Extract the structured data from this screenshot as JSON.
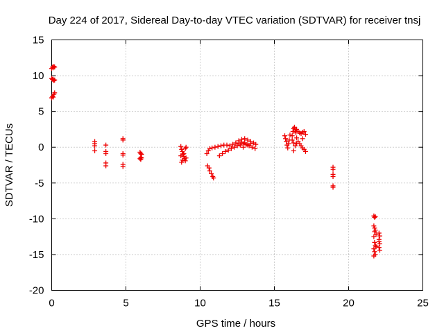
{
  "chart_data": {
    "type": "scatter",
    "title": "Day 224 of 2017, Sidereal Day-to-day VTEC variation (SDTVAR) for receiver tnsj",
    "xlabel": "GPS time / hours",
    "ylabel": "SDTVAR / TECUs",
    "xlim": [
      0,
      25
    ],
    "ylim": [
      -20,
      15
    ],
    "xticks": [
      0,
      5,
      10,
      15,
      20,
      25
    ],
    "yticks": [
      15,
      10,
      5,
      0,
      -5,
      -10,
      -15,
      -20
    ],
    "grid": true,
    "marker": "+",
    "color": "#ee0000",
    "series": [
      {
        "name": "SDTVAR",
        "points": [
          [
            0.0,
            11.0
          ],
          [
            0.05,
            11.2
          ],
          [
            0.1,
            11.1
          ],
          [
            0.15,
            11.3
          ],
          [
            0.2,
            11.2
          ],
          [
            0.0,
            9.6
          ],
          [
            0.05,
            9.5
          ],
          [
            0.1,
            9.5
          ],
          [
            0.15,
            9.3
          ],
          [
            0.2,
            9.4
          ],
          [
            0.0,
            6.9
          ],
          [
            0.05,
            7.1
          ],
          [
            0.1,
            7.0
          ],
          [
            0.15,
            7.4
          ],
          [
            0.2,
            7.6
          ],
          [
            2.9,
            0.8
          ],
          [
            2.9,
            0.5
          ],
          [
            2.9,
            0.2
          ],
          [
            2.9,
            -0.5
          ],
          [
            3.65,
            0.3
          ],
          [
            3.65,
            -0.6
          ],
          [
            3.65,
            -0.9
          ],
          [
            3.65,
            -2.2
          ],
          [
            3.65,
            -2.6
          ],
          [
            4.8,
            1.2
          ],
          [
            4.8,
            1.0
          ],
          [
            4.8,
            -0.9
          ],
          [
            4.8,
            -1.1
          ],
          [
            4.8,
            -2.4
          ],
          [
            4.8,
            -2.7
          ],
          [
            5.95,
            -0.7
          ],
          [
            6.0,
            -0.9
          ],
          [
            6.05,
            -1.0
          ],
          [
            6.0,
            -1.4
          ],
          [
            5.95,
            -1.6
          ],
          [
            6.05,
            -1.5
          ],
          [
            6.0,
            -1.7
          ],
          [
            8.7,
            0.1
          ],
          [
            8.75,
            -0.3
          ],
          [
            8.8,
            -0.6
          ],
          [
            8.85,
            -1.0
          ],
          [
            8.9,
            -1.3
          ],
          [
            8.95,
            -1.6
          ],
          [
            9.0,
            -1.9
          ],
          [
            9.05,
            -1.5
          ],
          [
            8.75,
            -2.1
          ],
          [
            8.8,
            -1.8
          ],
          [
            8.9,
            -0.9
          ],
          [
            9.0,
            -0.2
          ],
          [
            9.05,
            0.0
          ],
          [
            8.7,
            -1.2
          ],
          [
            10.45,
            -0.9
          ],
          [
            10.55,
            -0.5
          ],
          [
            10.65,
            -0.2
          ],
          [
            10.8,
            -0.1
          ],
          [
            11.0,
            0.0
          ],
          [
            11.2,
            0.1
          ],
          [
            11.4,
            0.2
          ],
          [
            11.6,
            0.3
          ],
          [
            11.8,
            0.3
          ],
          [
            12.0,
            0.2
          ],
          [
            12.2,
            0.4
          ],
          [
            12.4,
            0.6
          ],
          [
            12.6,
            0.9
          ],
          [
            12.8,
            1.1
          ],
          [
            13.0,
            1.2
          ],
          [
            13.2,
            1.0
          ],
          [
            13.4,
            0.8
          ],
          [
            13.6,
            0.6
          ],
          [
            13.75,
            0.4
          ],
          [
            11.3,
            -1.2
          ],
          [
            11.5,
            -0.9
          ],
          [
            11.7,
            -0.6
          ],
          [
            11.9,
            -0.4
          ],
          [
            12.1,
            -0.2
          ],
          [
            12.3,
            0.0
          ],
          [
            12.5,
            0.2
          ],
          [
            12.7,
            0.3
          ],
          [
            12.9,
            0.5
          ],
          [
            13.1,
            0.4
          ],
          [
            13.3,
            0.2
          ],
          [
            13.5,
            0.0
          ],
          [
            13.7,
            -0.2
          ],
          [
            12.6,
            0.5
          ],
          [
            12.8,
            0.7
          ],
          [
            13.0,
            0.6
          ],
          [
            13.2,
            0.3
          ],
          [
            12.9,
            0.0
          ],
          [
            13.4,
            0.5
          ],
          [
            10.5,
            -2.6
          ],
          [
            10.6,
            -2.9
          ],
          [
            10.65,
            -3.3
          ],
          [
            10.75,
            -3.7
          ],
          [
            10.85,
            -4.1
          ],
          [
            10.9,
            -4.3
          ],
          [
            15.7,
            1.6
          ],
          [
            15.75,
            1.2
          ],
          [
            15.8,
            0.8
          ],
          [
            15.85,
            0.3
          ],
          [
            15.9,
            -0.1
          ],
          [
            15.95,
            0.5
          ],
          [
            16.0,
            1.0
          ],
          [
            16.05,
            1.7
          ],
          [
            16.2,
            1.6
          ],
          [
            16.25,
            2.2
          ],
          [
            16.3,
            2.6
          ],
          [
            16.35,
            2.8
          ],
          [
            16.4,
            2.4
          ],
          [
            16.45,
            2.0
          ],
          [
            16.5,
            2.5
          ],
          [
            16.6,
            2.2
          ],
          [
            16.7,
            2.0
          ],
          [
            16.8,
            1.9
          ],
          [
            16.9,
            2.1
          ],
          [
            17.0,
            2.2
          ],
          [
            17.1,
            1.8
          ],
          [
            16.2,
            1.0
          ],
          [
            16.3,
            0.6
          ],
          [
            16.4,
            0.2
          ],
          [
            16.5,
            0.5
          ],
          [
            16.6,
            0.8
          ],
          [
            16.7,
            0.5
          ],
          [
            16.8,
            0.2
          ],
          [
            16.9,
            -0.1
          ],
          [
            17.0,
            -0.3
          ],
          [
            17.1,
            -0.6
          ],
          [
            16.3,
            -0.5
          ],
          [
            16.5,
            1.3
          ],
          [
            16.9,
            1.2
          ],
          [
            18.95,
            -2.8
          ],
          [
            18.95,
            -3.1
          ],
          [
            18.95,
            -3.8
          ],
          [
            18.95,
            -4.1
          ],
          [
            18.95,
            -5.4
          ],
          [
            18.95,
            -5.6
          ],
          [
            21.7,
            -9.6
          ],
          [
            21.75,
            -9.8
          ],
          [
            21.8,
            -9.7
          ],
          [
            21.7,
            -11.0
          ],
          [
            21.75,
            -11.3
          ],
          [
            21.8,
            -11.6
          ],
          [
            21.7,
            -12.5
          ],
          [
            21.75,
            -13.3
          ],
          [
            21.8,
            -13.7
          ],
          [
            21.7,
            -14.2
          ],
          [
            21.75,
            -14.6
          ],
          [
            21.8,
            -15.0
          ],
          [
            21.7,
            -15.2
          ],
          [
            21.85,
            -12.2
          ],
          [
            21.85,
            -13.9
          ],
          [
            21.75,
            -11.8
          ],
          [
            22.05,
            -12.0
          ],
          [
            22.1,
            -12.4
          ],
          [
            22.05,
            -12.9
          ],
          [
            22.1,
            -13.5
          ],
          [
            22.05,
            -14.0
          ],
          [
            22.1,
            -14.4
          ],
          [
            22.05,
            -13.2
          ]
        ]
      }
    ]
  }
}
